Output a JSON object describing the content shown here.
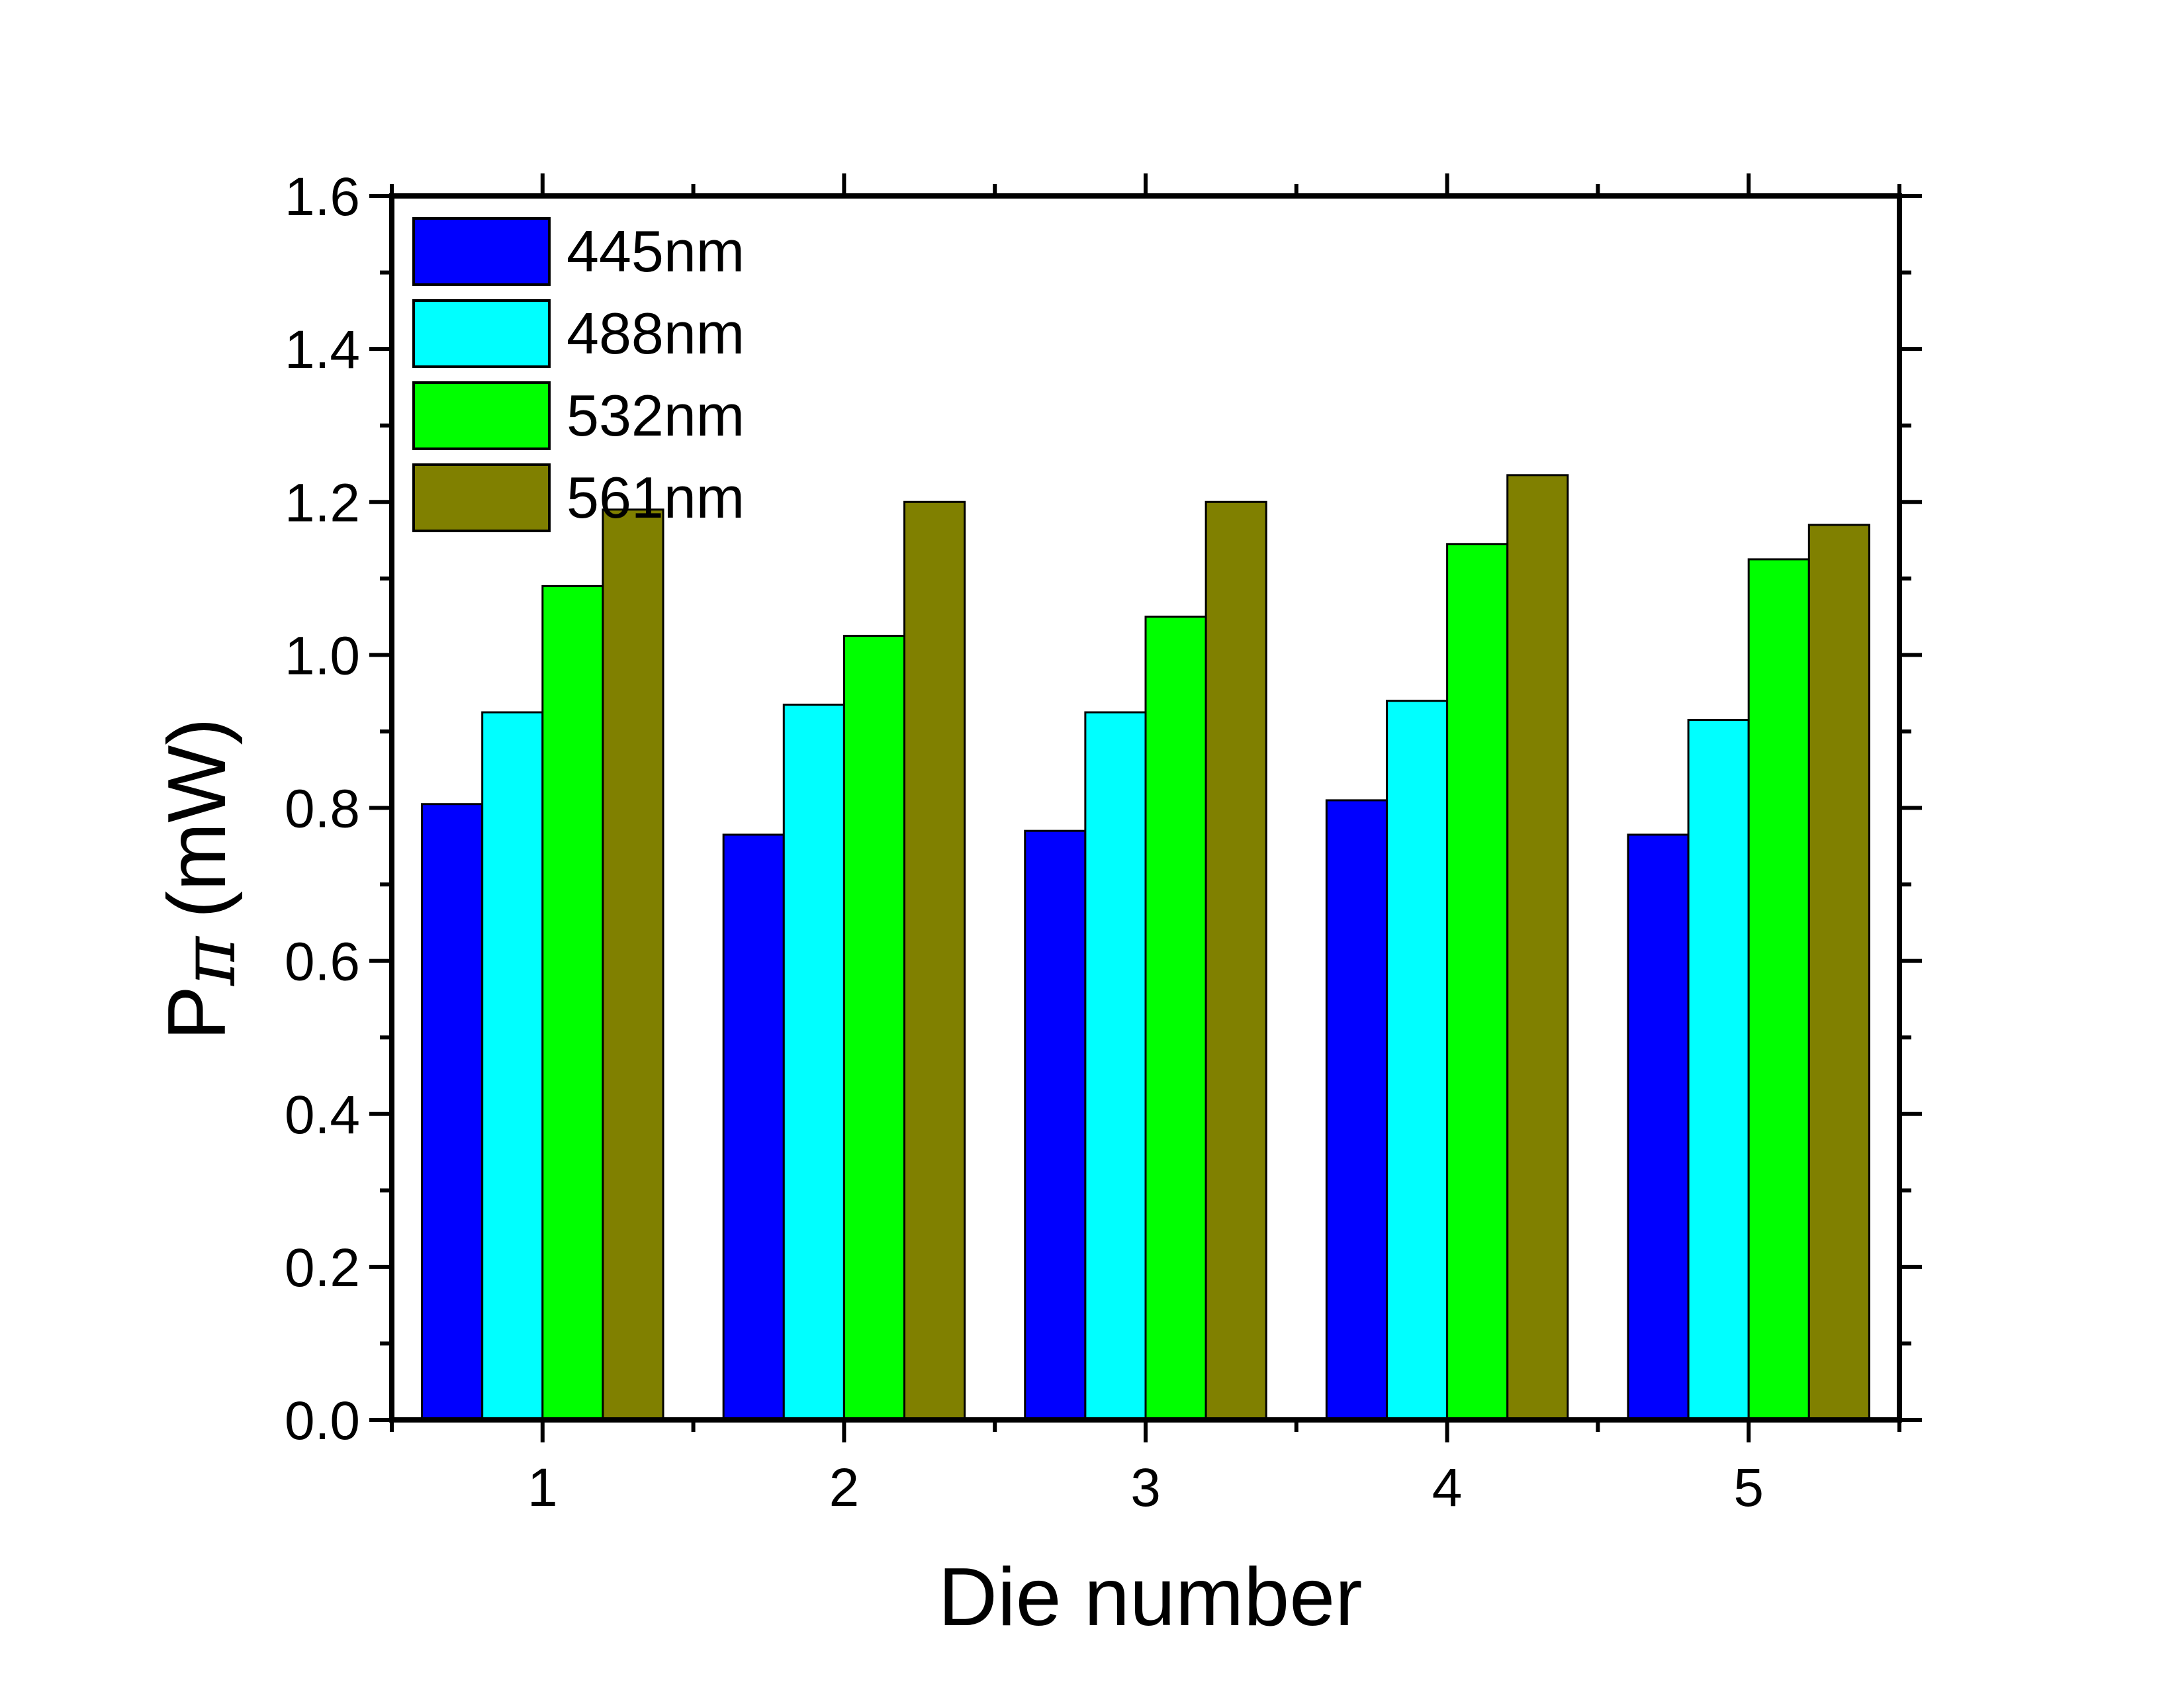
{
  "chart_data": {
    "type": "bar",
    "title": "",
    "xlabel": "Die number",
    "ylabel": "Pπ (mW)",
    "ylabel_parts": {
      "main": "P",
      "sub": "π",
      "unit": "(mW)"
    },
    "categories": [
      "1",
      "2",
      "3",
      "4",
      "5"
    ],
    "series": [
      {
        "name": "445nm",
        "color": "#0000FF",
        "values": [
          0.805,
          0.765,
          0.77,
          0.81,
          0.765
        ]
      },
      {
        "name": "488nm",
        "color": "#00FFFF",
        "values": [
          0.925,
          0.935,
          0.925,
          0.94,
          0.915
        ]
      },
      {
        "name": "532nm",
        "color": "#00FF00",
        "values": [
          1.09,
          1.025,
          1.05,
          1.145,
          1.125
        ]
      },
      {
        "name": "561nm",
        "color": "#808000",
        "values": [
          1.19,
          1.2,
          1.2,
          1.235,
          1.17
        ]
      }
    ],
    "xlim": [
      0.5,
      5.5
    ],
    "ylim": [
      0,
      1.6
    ],
    "yticks": [
      "0.0",
      "0.2",
      "0.4",
      "0.6",
      "0.8",
      "1.0",
      "1.2",
      "1.4",
      "1.6"
    ],
    "grid": false,
    "legend_position": "top-left"
  }
}
